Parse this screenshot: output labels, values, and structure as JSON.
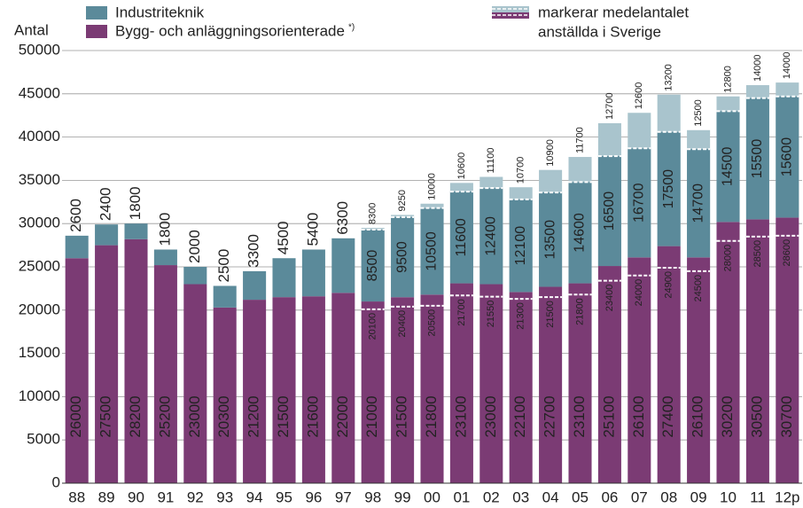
{
  "chart_data": {
    "type": "stacked_bar",
    "ylabel": "Antal",
    "categories": [
      "88",
      "89",
      "90",
      "91",
      "92",
      "93",
      "94",
      "95",
      "96",
      "97",
      "98",
      "99",
      "00",
      "01",
      "02",
      "03",
      "04",
      "05",
      "06",
      "07",
      "08",
      "09",
      "10",
      "11",
      "12p"
    ],
    "series": [
      {
        "name": "Bygg- och anläggningsorienterade",
        "note": "*)",
        "color": "#7b3b74",
        "values": [
          26000,
          27500,
          28200,
          25200,
          23000,
          20300,
          21200,
          21500,
          21600,
          22000,
          21000,
          21500,
          21800,
          23100,
          23000,
          22100,
          22700,
          23100,
          25100,
          26100,
          27400,
          26100,
          30200,
          30500,
          30700
        ],
        "sweden_values": [
          null,
          null,
          null,
          null,
          null,
          null,
          null,
          null,
          null,
          null,
          20100,
          20400,
          20500,
          21700,
          21550,
          21300,
          21500,
          21800,
          23400,
          24000,
          24900,
          24500,
          28000,
          28500,
          28600
        ]
      },
      {
        "name": "Industriteknik",
        "color": "#5b8a9a",
        "light_color": "#a9c4cd",
        "values": [
          2600,
          2400,
          1800,
          1800,
          2000,
          2500,
          3300,
          4500,
          5400,
          6300,
          8500,
          9500,
          10500,
          11600,
          12400,
          12100,
          13500,
          14600,
          16500,
          16700,
          17500,
          14700,
          14500,
          15500,
          15600
        ],
        "sweden_values": [
          null,
          null,
          null,
          null,
          null,
          null,
          null,
          null,
          null,
          null,
          8300,
          9250,
          10000,
          10600,
          11100,
          10700,
          10900,
          11700,
          12700,
          12600,
          13200,
          12500,
          12800,
          14000,
          14000
        ]
      }
    ],
    "sweden_legend": [
      "markerar medelantalet",
      "anställda i Sverige"
    ],
    "ylim": [
      0,
      50000
    ],
    "yticks": [
      0,
      5000,
      10000,
      15000,
      20000,
      25000,
      30000,
      35000,
      40000,
      45000,
      50000
    ],
    "grid": true
  }
}
